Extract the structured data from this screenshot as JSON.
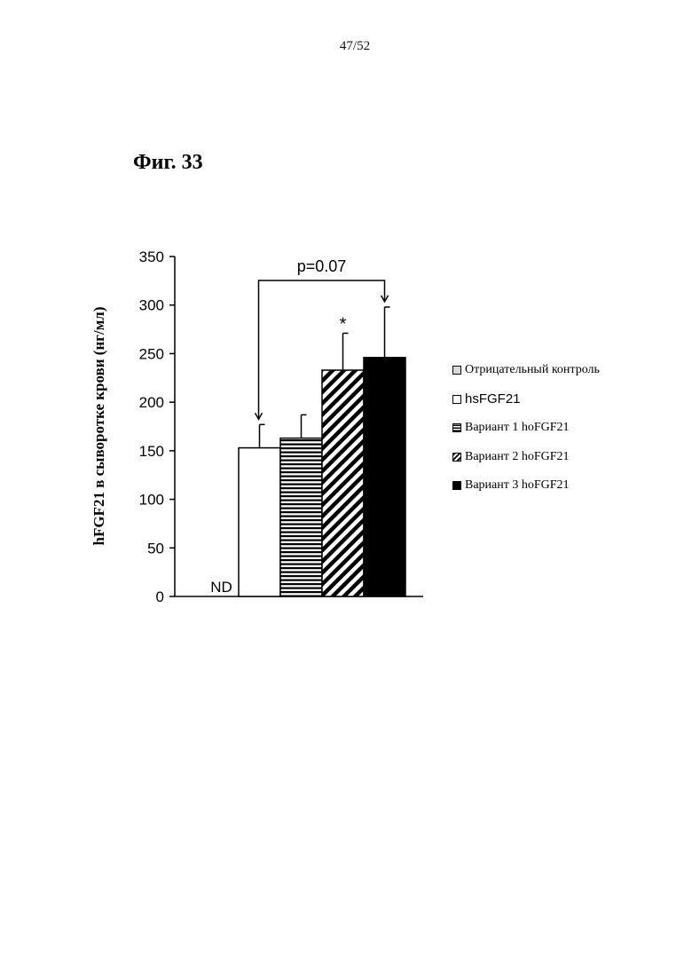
{
  "page_number": "47/52",
  "figure_title": "Фиг. 33",
  "chart_data": {
    "type": "bar",
    "ylabel": "hFGF21 в сыворотке крови (нг/мл)",
    "ylim": [
      0,
      350
    ],
    "yticks": [
      0,
      50,
      100,
      150,
      200,
      250,
      300,
      350
    ],
    "grid": false,
    "legend_position": "right",
    "series": [
      {
        "name": "Отрицательный контроль",
        "value": null,
        "error": null,
        "label": "ND",
        "pattern": "light-gray"
      },
      {
        "name": "hsFGF21",
        "value": 153,
        "error": 24,
        "label": "",
        "pattern": "white"
      },
      {
        "name": "Вариант 1 hoFGF21",
        "value": 163,
        "error": 24,
        "label": "",
        "pattern": "horizontal-stripes"
      },
      {
        "name": "Вариант 2 hoFGF21",
        "value": 233,
        "error": 38,
        "label": "*",
        "pattern": "diagonal-stripes"
      },
      {
        "name": "Вариант 3 hoFGF21",
        "value": 246,
        "error": 52,
        "label": "",
        "pattern": "black"
      }
    ],
    "annotation": {
      "text": "p=0.07",
      "from": "hsFGF21",
      "to": "Вариант 3 hoFGF21"
    }
  }
}
